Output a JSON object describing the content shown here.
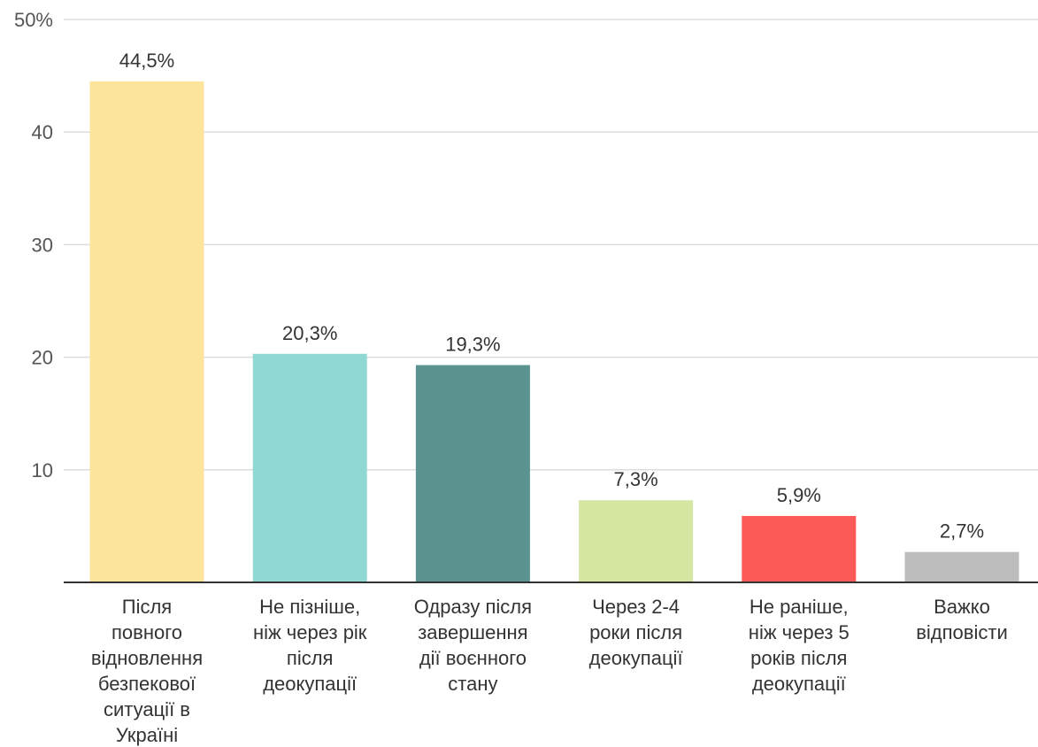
{
  "chart_data": {
    "type": "bar",
    "categories": [
      "Після повного відновлення безпекової ситуації в Україні",
      "Не пізніше, ніж через рік після деокупації",
      "Одразу після завершення дії воєнного стану",
      "Через 2-4 роки після деокупації",
      "Не раніше, ніж через 5 років після деокупації",
      "Важко відповісти"
    ],
    "category_lines": [
      [
        "Після",
        "повного",
        "відновлення",
        "безпекової",
        "ситуації в",
        "Україні"
      ],
      [
        "Не пізніше,",
        "ніж через рік",
        "після",
        "деокупації"
      ],
      [
        "Одразу після",
        "завершення",
        "дії воєнного",
        "стану"
      ],
      [
        "Через 2-4",
        "роки після",
        "деокупації"
      ],
      [
        "Не раніше,",
        "ніж через 5",
        "років після",
        "деокупації"
      ],
      [
        "Важко",
        "відповісти"
      ]
    ],
    "values": [
      44.5,
      20.3,
      19.3,
      7.3,
      5.9,
      2.7
    ],
    "data_labels": [
      "44,5%",
      "20,3%",
      "19,3%",
      "7,3%",
      "5,9%",
      "2,7%"
    ],
    "colors": [
      "#fde49c",
      "#8fd9d2",
      "#5a9390",
      "#d6e6a3",
      "#fc5a56",
      "#bdbdbd"
    ],
    "y_ticks": [
      {
        "value": 10,
        "label": "10"
      },
      {
        "value": 20,
        "label": "20"
      },
      {
        "value": 30,
        "label": "30"
      },
      {
        "value": 40,
        "label": "40"
      },
      {
        "value": 50,
        "label": "50%"
      }
    ],
    "ylim": [
      0,
      50
    ],
    "title": "",
    "xlabel": "",
    "ylabel": "",
    "grid": true
  }
}
